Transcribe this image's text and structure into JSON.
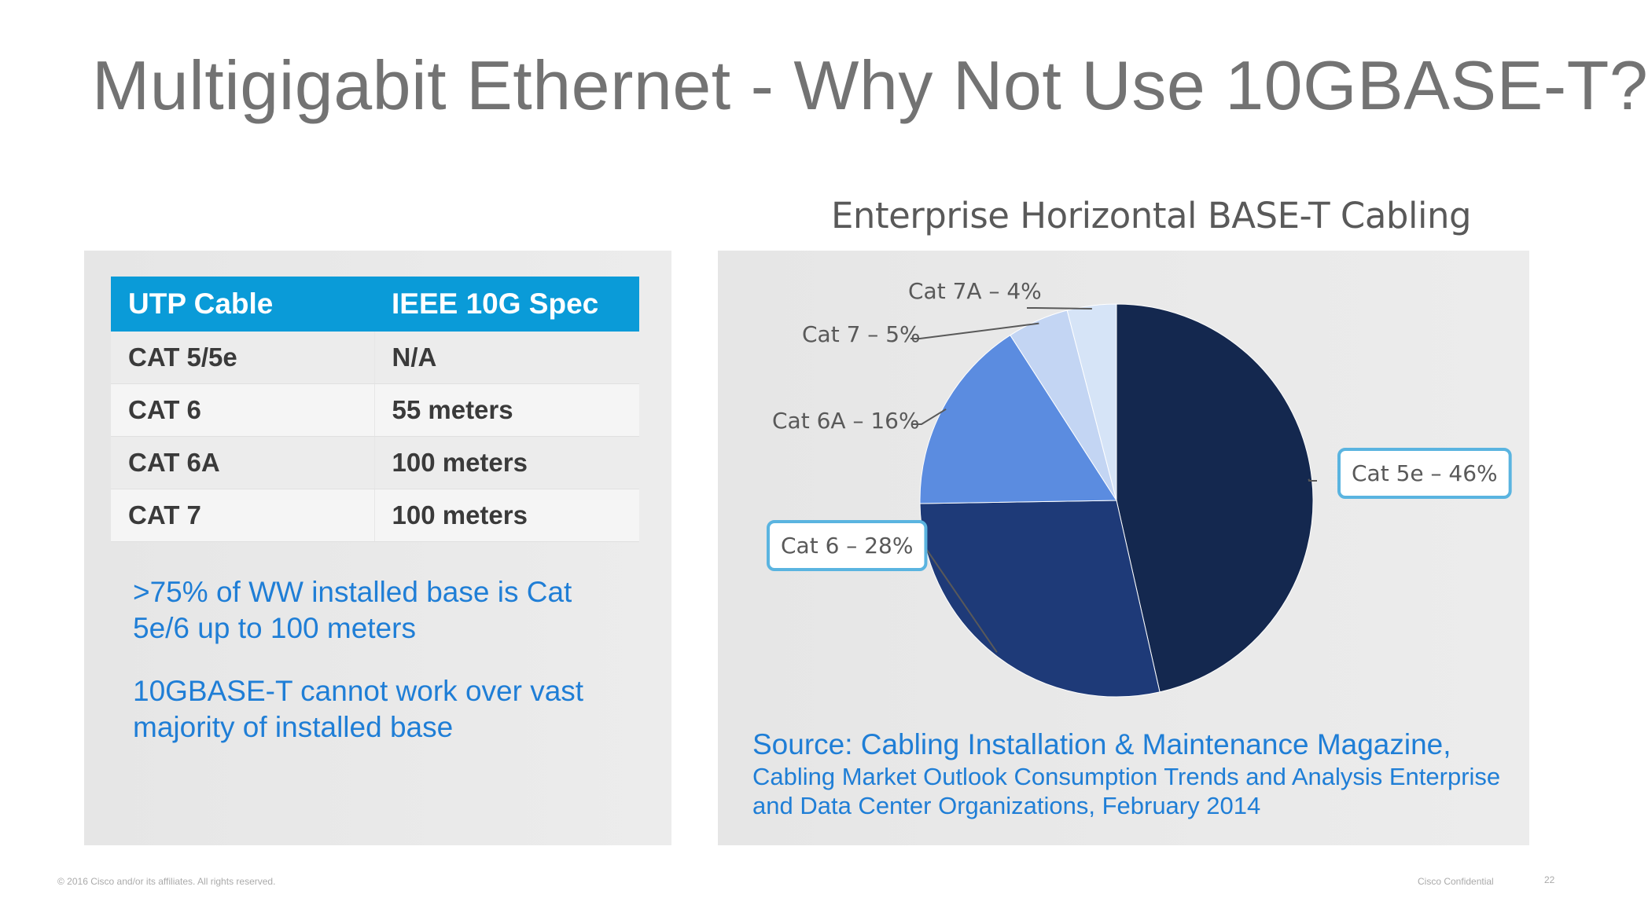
{
  "slide": {
    "title": "Multigigabit Ethernet - Why Not Use 10GBASE-T?",
    "footer_left": "© 2016 Cisco and/or its affiliates. All rights reserved.",
    "footer_right": "Cisco Confidential",
    "page_number": "22"
  },
  "cable_table": {
    "headers": [
      "UTP Cable",
      "IEEE 10G Spec"
    ],
    "rows": [
      [
        "CAT 5/5e",
        "N/A"
      ],
      [
        "CAT 6",
        "55 meters"
      ],
      [
        "CAT 6A",
        "100 meters"
      ],
      [
        "CAT 7",
        "100 meters"
      ]
    ],
    "header_color": "#0a9bd8"
  },
  "notes": [
    ">75% of WW installed base is Cat 5e/6 up to 100 meters",
    "10GBASE-T cannot work over vast majority of installed base"
  ],
  "source": {
    "line1": "Source: Cabling Installation & Maintenance Magazine,",
    "line2": "Cabling Market Outlook Consumption Trends and  Analysis Enterprise and Data Center Organizations, February 2014"
  },
  "chart_data": {
    "type": "pie",
    "title": "Enterprise Horizontal BASE-T Cabling",
    "slices": [
      {
        "label": "Cat 5e –  46%",
        "value": 46,
        "color": "#14284f",
        "highlight": true
      },
      {
        "label": "Cat 6 – 28%",
        "value": 28,
        "color": "#1e3a78",
        "highlight": true
      },
      {
        "label": "Cat 6A – 16%",
        "value": 16,
        "color": "#5b8ce0",
        "highlight": false
      },
      {
        "label": "Cat 7 – 5%",
        "value": 5,
        "color": "#c3d5f3",
        "highlight": false
      },
      {
        "label": "Cat 7A – 4%",
        "value": 4,
        "color": "#d6e4f7",
        "highlight": false
      }
    ],
    "start": "12 o'clock",
    "direction": "clockwise",
    "highlight_box_color": "#5ab4e0"
  }
}
